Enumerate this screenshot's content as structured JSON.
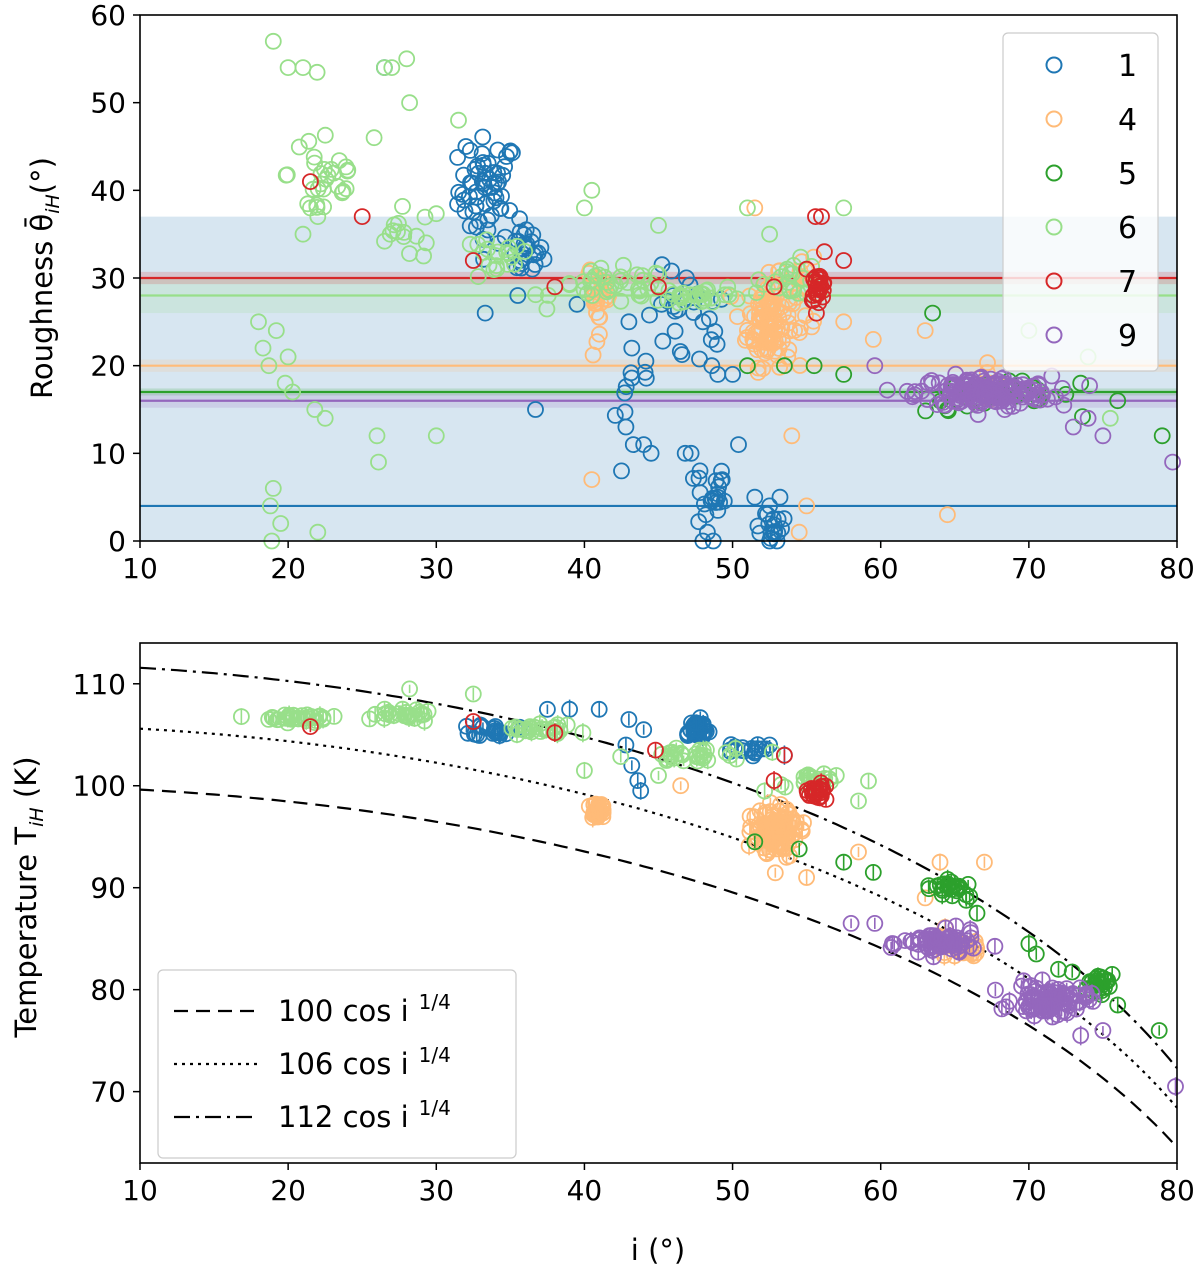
{
  "chart_data": [
    {
      "type": "scatter",
      "panel": "top",
      "xlabel": "",
      "ylabel": "Roughness θ̄",
      "ylabel_sub": "iH",
      "ylabel_unit": "(°)",
      "xlim": [
        10,
        80
      ],
      "ylim": [
        0,
        60
      ],
      "xticks": [
        10,
        20,
        30,
        40,
        50,
        60,
        70,
        80
      ],
      "yticks": [
        0,
        10,
        20,
        30,
        40,
        50,
        60
      ],
      "legend_position": "upper-right",
      "series": [
        {
          "name": "1",
          "color": "#1f77b4",
          "mean": 4,
          "band": [
            0,
            37
          ],
          "clusters": [
            [
              33.5,
              40,
              2.0,
              6,
              60
            ],
            [
              36,
              33,
              1.2,
              3,
              25
            ],
            [
              47,
              25,
              3,
              6,
              25
            ],
            [
              48.5,
              5,
              1.0,
              4,
              18
            ],
            [
              52.5,
              2,
              1.5,
              2,
              16
            ],
            [
              43,
              18,
              2,
              6,
              8
            ]
          ],
          "points": [
            [
              26.5,
              54
            ],
            [
              32,
              45
            ],
            [
              33.3,
              26
            ],
            [
              35.5,
              28
            ],
            [
              36.7,
              15
            ],
            [
              39.5,
              27
            ],
            [
              43,
              25
            ],
            [
              43.2,
              22
            ],
            [
              43.3,
              11
            ],
            [
              44,
              11
            ],
            [
              44.5,
              10
            ],
            [
              42.5,
              8
            ],
            [
              42.8,
              13
            ],
            [
              45.2,
              27
            ],
            [
              46,
              28
            ],
            [
              46.8,
              10
            ],
            [
              47.2,
              10
            ],
            [
              47.8,
              8
            ],
            [
              48.2,
              3
            ],
            [
              48.3,
              1
            ],
            [
              49,
              5
            ],
            [
              49.3,
              7
            ],
            [
              50.4,
              11
            ],
            [
              51.5,
              5
            ],
            [
              52.5,
              0
            ],
            [
              53,
              0
            ],
            [
              52.5,
              4
            ],
            [
              53.2,
              5
            ],
            [
              48,
              25
            ],
            [
              48.6,
              20
            ],
            [
              49,
              19
            ],
            [
              50,
              19
            ],
            [
              48,
              0
            ],
            [
              48.7,
              0
            ]
          ]
        },
        {
          "name": "4",
          "color": "#ffbb78",
          "mean": 20,
          "band": [
            19.3,
            20.7
          ],
          "clusters": [
            [
              52.5,
              25,
              1.5,
              5,
              110
            ],
            [
              41,
              28,
              0.8,
              4,
              25
            ],
            [
              55,
              28,
              1.0,
              4,
              14
            ],
            [
              67,
              18,
              1.5,
              2,
              10
            ]
          ],
          "points": [
            [
              40.5,
              7
            ],
            [
              51.5,
              38
            ],
            [
              54,
              12
            ],
            [
              54.5,
              1
            ],
            [
              55,
              4
            ],
            [
              57.5,
              25
            ],
            [
              59.5,
              23
            ],
            [
              64.5,
              3
            ],
            [
              63,
              24
            ]
          ]
        },
        {
          "name": "5",
          "color": "#2ca02c",
          "mean": 17,
          "band": [
            16.6,
            17.4
          ],
          "clusters": [
            [
              68,
              16.5,
              5,
              1.8,
              30
            ]
          ],
          "points": [
            [
              51,
              20
            ],
            [
              53.5,
              20
            ],
            [
              55.5,
              20
            ],
            [
              57.5,
              19
            ],
            [
              63.5,
              26
            ],
            [
              64.5,
              15
            ],
            [
              73.5,
              18
            ],
            [
              79,
              12
            ],
            [
              76,
              16
            ]
          ]
        },
        {
          "name": "6",
          "color": "#98df8a",
          "mean": 28,
          "band": [
            26,
            30
          ],
          "clusters": [
            [
              22.5,
              42,
              2.5,
              7,
              30
            ],
            [
              28,
              35,
              2.5,
              3,
              15
            ],
            [
              34,
              32,
              2.5,
              2.5,
              20
            ],
            [
              42,
              29,
              4,
              2,
              40
            ],
            [
              48,
              28,
              3,
              1,
              30
            ],
            [
              54,
              30,
              2,
              2,
              20
            ]
          ],
          "points": [
            [
              19,
              57
            ],
            [
              20,
              54
            ],
            [
              21,
              54
            ],
            [
              28,
              55
            ],
            [
              27,
              54
            ],
            [
              26.5,
              54
            ],
            [
              28.2,
              50
            ],
            [
              31.5,
              48
            ],
            [
              18,
              25
            ],
            [
              18.3,
              22
            ],
            [
              18.7,
              20
            ],
            [
              19.2,
              24
            ],
            [
              19.8,
              18
            ],
            [
              20,
              21
            ],
            [
              20.3,
              17
            ],
            [
              21,
              35
            ],
            [
              21.5,
              38
            ],
            [
              22,
              37
            ],
            [
              18.8,
              4
            ],
            [
              19,
              6
            ],
            [
              19.5,
              2
            ],
            [
              18.9,
              0
            ],
            [
              21.8,
              15
            ],
            [
              22.5,
              14
            ],
            [
              22,
              1
            ],
            [
              26,
              12
            ],
            [
              26.1,
              9
            ],
            [
              30,
              12
            ],
            [
              25.8,
              46
            ],
            [
              40.5,
              40
            ],
            [
              40,
              38
            ],
            [
              45,
              36
            ],
            [
              51,
              38
            ],
            [
              52.5,
              35
            ],
            [
              57.5,
              38
            ],
            [
              70,
              24
            ],
            [
              74,
              21
            ],
            [
              75.5,
              14
            ]
          ]
        },
        {
          "name": "7",
          "color": "#d62728",
          "mean": 30,
          "band": [
            29.3,
            30.7
          ],
          "clusters": [
            [
              55.8,
              29,
              0.5,
              1.5,
              28
            ]
          ],
          "points": [
            [
              21.5,
              41
            ],
            [
              25,
              37
            ],
            [
              32.5,
              32
            ],
            [
              38,
              29
            ],
            [
              45,
              29
            ],
            [
              56,
              37
            ],
            [
              55.6,
              37
            ],
            [
              56.2,
              33
            ],
            [
              57.5,
              32
            ],
            [
              55,
              31
            ],
            [
              52.8,
              29
            ]
          ]
        },
        {
          "name": "9",
          "color": "#9467bd",
          "mean": 16,
          "band": [
            15.2,
            16.8
          ],
          "clusters": [
            [
              67,
              17,
              4.5,
              1.8,
              180
            ]
          ],
          "points": [
            [
              59.6,
              20
            ],
            [
              75,
              12
            ],
            [
              79.7,
              9
            ],
            [
              73,
              13
            ],
            [
              74,
              14
            ]
          ]
        }
      ]
    },
    {
      "type": "scatter",
      "panel": "bottom",
      "xlabel": "i (°)",
      "ylabel": "Temperature T",
      "ylabel_sub": "iH",
      "ylabel_unit": "(K)",
      "xlim": [
        10,
        80
      ],
      "ylim": [
        63,
        114
      ],
      "xticks": [
        10,
        20,
        30,
        40,
        50,
        60,
        70,
        80
      ],
      "yticks": [
        70,
        80,
        90,
        100,
        110
      ],
      "legend_position": "lower-left",
      "curves": [
        {
          "name": "100 cos i",
          "coef": 100,
          "exp": "1/4",
          "dash": "14,8"
        },
        {
          "name": "106 cos i",
          "coef": 106,
          "exp": "1/4",
          "dash": "3,5"
        },
        {
          "name": "112 cos i",
          "coef": 112,
          "exp": "1/4",
          "dash": "16,6,3,6"
        }
      ],
      "series": [
        {
          "name": "1",
          "color": "#1f77b4",
          "clusters": [
            [
              34,
              105.5,
              1.5,
              0.6,
              20
            ],
            [
              47.5,
              105.5,
              1.0,
              1.0,
              35
            ],
            [
              50.5,
              103.5,
              1.5,
              0.6,
              15
            ]
          ],
          "points": [
            [
              37.5,
              107.5
            ],
            [
              39,
              107.5
            ],
            [
              41,
              107.5
            ],
            [
              43,
              106.5
            ],
            [
              42.8,
              104
            ],
            [
              43.2,
              102
            ],
            [
              43.6,
              100.5
            ],
            [
              43.8,
              99.5
            ],
            [
              44,
              105.5
            ],
            [
              52.5,
              104
            ],
            [
              53.5,
              103
            ]
          ]
        },
        {
          "name": "4",
          "color": "#ffbb78",
          "clusters": [
            [
              41,
              97.5,
              0.6,
              0.8,
              30
            ],
            [
              53,
              95.5,
              1.5,
              2.5,
              110
            ],
            [
              65.5,
              84,
              1.5,
              1.2,
              30
            ]
          ],
          "points": [
            [
              46.5,
              100
            ],
            [
              58.5,
              93.5
            ],
            [
              64,
              92.5
            ],
            [
              67,
              92.5
            ],
            [
              63,
              89
            ],
            [
              55,
              91
            ]
          ]
        },
        {
          "name": "5",
          "color": "#2ca02c",
          "clusters": [
            [
              64.5,
              90,
              1.5,
              1.2,
              25
            ],
            [
              74.5,
              80.5,
              1.5,
              1.0,
              25
            ]
          ],
          "points": [
            [
              51.5,
              94.5
            ],
            [
              54.5,
              93.8
            ],
            [
              57.5,
              92.5
            ],
            [
              59.5,
              91.5
            ],
            [
              66.5,
              87.5
            ],
            [
              70,
              84.5
            ],
            [
              70.5,
              83.5
            ],
            [
              72,
              82
            ],
            [
              76,
              78.5
            ],
            [
              78.8,
              76
            ]
          ]
        },
        {
          "name": "6",
          "color": "#98df8a",
          "clusters": [
            [
              21,
              106.6,
              2.5,
              0.4,
              30
            ],
            [
              28,
              107,
              2.5,
              0.6,
              25
            ],
            [
              37,
              105.5,
              2.5,
              0.6,
              25
            ],
            [
              47,
              103,
              3.5,
              0.8,
              30
            ],
            [
              55,
              100.5,
              2.5,
              1.0,
              20
            ]
          ],
          "points": [
            [
              28.2,
              109.5
            ],
            [
              32.5,
              109
            ],
            [
              58.5,
              98.5
            ],
            [
              57,
              101
            ],
            [
              45,
              101
            ],
            [
              40,
              101.5
            ]
          ]
        },
        {
          "name": "7",
          "color": "#d62728",
          "clusters": [
            [
              55.8,
              99.5,
              0.6,
              0.8,
              25
            ]
          ],
          "points": [
            [
              21.5,
              105.8
            ],
            [
              32.5,
              106.3
            ],
            [
              38,
              105.2
            ],
            [
              44.8,
              103.5
            ],
            [
              52.8,
              100.5
            ],
            [
              53.5,
              103
            ]
          ]
        },
        {
          "name": "9",
          "color": "#9467bd",
          "clusters": [
            [
              64,
              84.5,
              2.5,
              1.2,
              70
            ],
            [
              71.5,
              79,
              2.5,
              1.5,
              90
            ]
          ],
          "points": [
            [
              59.6,
              86.5
            ],
            [
              58,
              86.5
            ],
            [
              79.9,
              70.5
            ],
            [
              75,
              76
            ],
            [
              73.5,
              75.5
            ]
          ]
        }
      ]
    }
  ]
}
